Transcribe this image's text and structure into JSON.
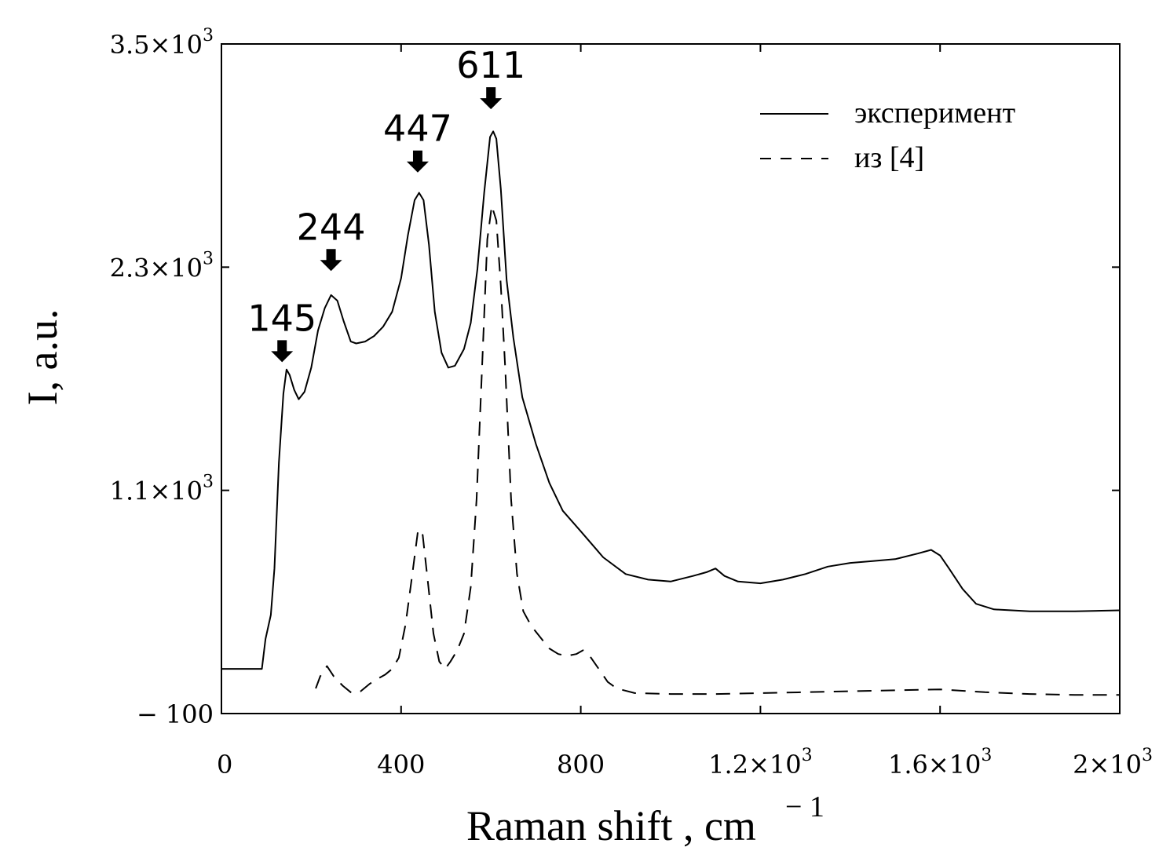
{
  "chart_data": {
    "type": "line",
    "xlabel": "Raman shift , cm",
    "xlabel_superscript": "− 1",
    "ylabel": "I, a.u.",
    "xlim": [
      0,
      2000
    ],
    "ylim": [
      -100,
      3500
    ],
    "grid": false,
    "legend_position": "top-right",
    "x_ticks": [
      {
        "value": 0,
        "label": "0",
        "sup": ""
      },
      {
        "value": 400,
        "label": "400",
        "sup": ""
      },
      {
        "value": 800,
        "label": "800",
        "sup": ""
      },
      {
        "value": 1200,
        "label": "1.2×10",
        "sup": "3"
      },
      {
        "value": 1600,
        "label": "1.6×10",
        "sup": "3"
      },
      {
        "value": 2000,
        "label": "2×10",
        "sup": "3"
      }
    ],
    "y_ticks": [
      {
        "value": -100,
        "label": "− 100",
        "sup": ""
      },
      {
        "value": 1100,
        "label": "1.1×10",
        "sup": "3"
      },
      {
        "value": 2300,
        "label": "2.3×10",
        "sup": "3"
      },
      {
        "value": 3500,
        "label": "3.5×10",
        "sup": "3"
      }
    ],
    "annotations": [
      {
        "label": "145",
        "x": 135,
        "y": 1730
      },
      {
        "label": "244",
        "x": 244,
        "y": 2220
      },
      {
        "label": "447",
        "x": 437,
        "y": 2750
      },
      {
        "label": "611",
        "x": 600,
        "y": 3090
      }
    ],
    "series": [
      {
        "name": "эксперимент",
        "style": "solid",
        "points": [
          [
            0,
            140
          ],
          [
            60,
            140
          ],
          [
            90,
            140
          ],
          [
            98,
            300
          ],
          [
            110,
            430
          ],
          [
            118,
            680
          ],
          [
            128,
            1250
          ],
          [
            138,
            1620
          ],
          [
            145,
            1750
          ],
          [
            152,
            1720
          ],
          [
            162,
            1640
          ],
          [
            172,
            1590
          ],
          [
            185,
            1630
          ],
          [
            200,
            1760
          ],
          [
            215,
            1960
          ],
          [
            230,
            2080
          ],
          [
            244,
            2150
          ],
          [
            258,
            2120
          ],
          [
            272,
            2010
          ],
          [
            288,
            1900
          ],
          [
            300,
            1890
          ],
          [
            320,
            1900
          ],
          [
            340,
            1930
          ],
          [
            360,
            1980
          ],
          [
            380,
            2060
          ],
          [
            400,
            2240
          ],
          [
            415,
            2470
          ],
          [
            430,
            2660
          ],
          [
            440,
            2700
          ],
          [
            450,
            2660
          ],
          [
            462,
            2420
          ],
          [
            475,
            2060
          ],
          [
            490,
            1840
          ],
          [
            505,
            1760
          ],
          [
            520,
            1770
          ],
          [
            540,
            1860
          ],
          [
            555,
            2000
          ],
          [
            570,
            2290
          ],
          [
            585,
            2700
          ],
          [
            598,
            3000
          ],
          [
            605,
            3030
          ],
          [
            612,
            2990
          ],
          [
            622,
            2720
          ],
          [
            635,
            2230
          ],
          [
            650,
            1920
          ],
          [
            670,
            1600
          ],
          [
            700,
            1350
          ],
          [
            730,
            1140
          ],
          [
            760,
            990
          ],
          [
            800,
            880
          ],
          [
            850,
            740
          ],
          [
            900,
            650
          ],
          [
            950,
            620
          ],
          [
            1000,
            610
          ],
          [
            1050,
            640
          ],
          [
            1080,
            660
          ],
          [
            1100,
            680
          ],
          [
            1120,
            640
          ],
          [
            1150,
            610
          ],
          [
            1200,
            600
          ],
          [
            1250,
            620
          ],
          [
            1300,
            650
          ],
          [
            1350,
            690
          ],
          [
            1400,
            710
          ],
          [
            1450,
            720
          ],
          [
            1500,
            730
          ],
          [
            1550,
            760
          ],
          [
            1580,
            780
          ],
          [
            1600,
            750
          ],
          [
            1620,
            680
          ],
          [
            1650,
            570
          ],
          [
            1680,
            490
          ],
          [
            1720,
            460
          ],
          [
            1800,
            450
          ],
          [
            1900,
            450
          ],
          [
            2000,
            455
          ]
        ]
      },
      {
        "name": "из [4]",
        "style": "dashed",
        "points": [
          [
            210,
            35
          ],
          [
            220,
            100
          ],
          [
            235,
            155
          ],
          [
            250,
            100
          ],
          [
            270,
            50
          ],
          [
            290,
            10
          ],
          [
            310,
            20
          ],
          [
            330,
            60
          ],
          [
            350,
            90
          ],
          [
            365,
            110
          ],
          [
            380,
            140
          ],
          [
            395,
            200
          ],
          [
            410,
            380
          ],
          [
            425,
            650
          ],
          [
            438,
            890
          ],
          [
            448,
            860
          ],
          [
            460,
            600
          ],
          [
            472,
            330
          ],
          [
            485,
            180
          ],
          [
            498,
            140
          ],
          [
            510,
            180
          ],
          [
            525,
            240
          ],
          [
            540,
            330
          ],
          [
            555,
            580
          ],
          [
            568,
            1050
          ],
          [
            580,
            1750
          ],
          [
            592,
            2450
          ],
          [
            602,
            2630
          ],
          [
            612,
            2550
          ],
          [
            622,
            2200
          ],
          [
            632,
            1750
          ],
          [
            645,
            1050
          ],
          [
            658,
            650
          ],
          [
            672,
            450
          ],
          [
            690,
            370
          ],
          [
            710,
            310
          ],
          [
            730,
            250
          ],
          [
            750,
            220
          ],
          [
            770,
            210
          ],
          [
            790,
            220
          ],
          [
            805,
            240
          ],
          [
            820,
            210
          ],
          [
            840,
            140
          ],
          [
            860,
            70
          ],
          [
            880,
            35
          ],
          [
            920,
            10
          ],
          [
            1000,
            5
          ],
          [
            1100,
            5
          ],
          [
            1200,
            10
          ],
          [
            1300,
            15
          ],
          [
            1400,
            20
          ],
          [
            1500,
            25
          ],
          [
            1600,
            30
          ],
          [
            1700,
            15
          ],
          [
            1800,
            5
          ],
          [
            1900,
            0
          ],
          [
            2000,
            0
          ]
        ]
      }
    ]
  }
}
